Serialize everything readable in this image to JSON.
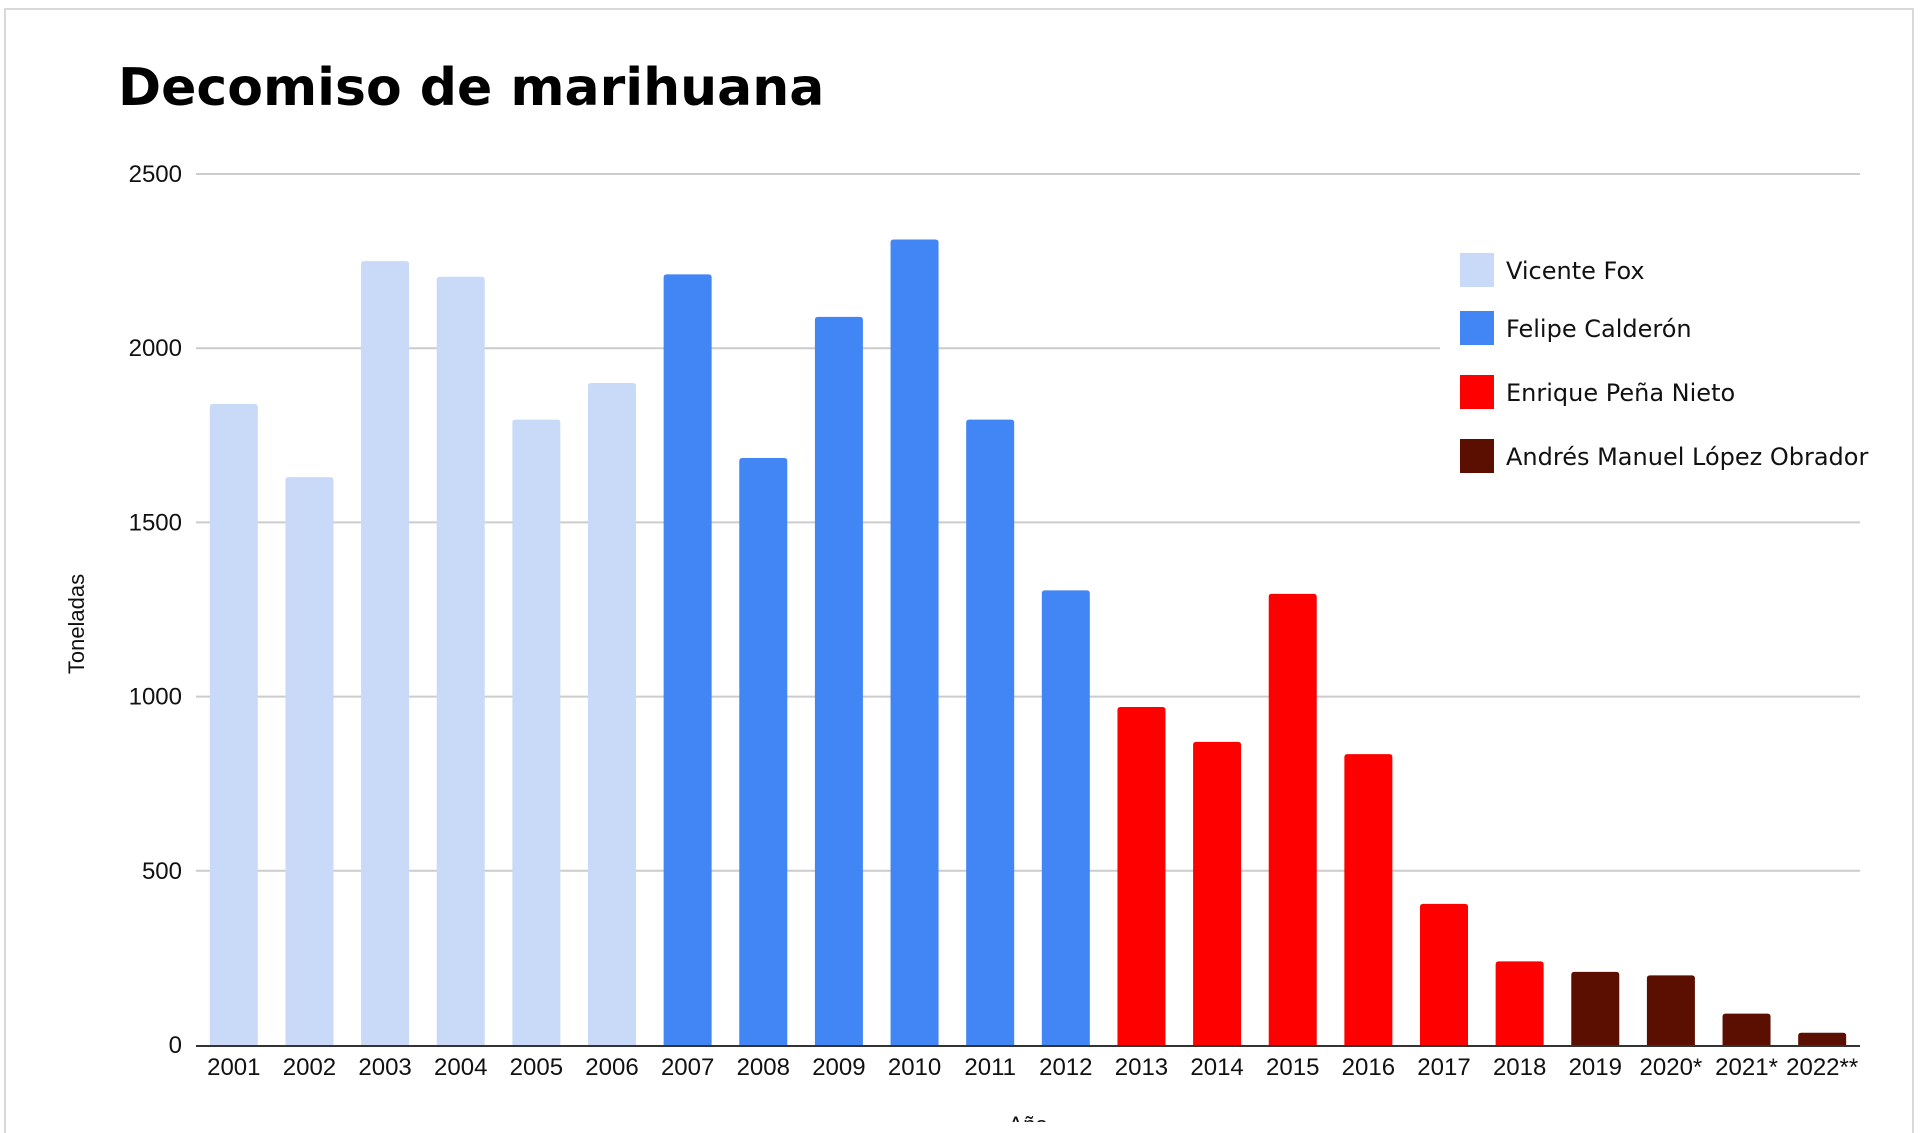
{
  "colors": {
    "Vicente Fox": "#c9daf8",
    "Felipe Calderón": "#4285f4",
    "Enrique Peña Nieto": "#ff0000",
    "Andrés Manuel López Obrador": "#5b0f00",
    "gridline": "#cccccc",
    "axis": "#333333"
  },
  "chart_data": {
    "type": "bar",
    "title": "Decomiso de marihuana",
    "xlabel": "Año",
    "ylabel": "Toneladas",
    "ylim": [
      0,
      2500
    ],
    "yticks": [
      0,
      500,
      1000,
      1500,
      2000,
      2500
    ],
    "grid": true,
    "legend_position": "top-right",
    "categories": [
      "2001",
      "2002",
      "2003",
      "2004",
      "2005",
      "2006",
      "2007",
      "2008",
      "2009",
      "2010",
      "2011",
      "2012",
      "2013",
      "2014",
      "2015",
      "2016",
      "2017",
      "2018",
      "2019",
      "2020*",
      "2021*",
      "2022**"
    ],
    "values": [
      1840,
      1630,
      2250,
      2205,
      1795,
      1900,
      2212,
      1685,
      2090,
      2312,
      1795,
      1305,
      970,
      870,
      1295,
      835,
      405,
      240,
      210,
      200,
      90,
      35
    ],
    "bar_series": [
      "Vicente Fox",
      "Vicente Fox",
      "Vicente Fox",
      "Vicente Fox",
      "Vicente Fox",
      "Vicente Fox",
      "Felipe Calderón",
      "Felipe Calderón",
      "Felipe Calderón",
      "Felipe Calderón",
      "Felipe Calderón",
      "Felipe Calderón",
      "Enrique Peña Nieto",
      "Enrique Peña Nieto",
      "Enrique Peña Nieto",
      "Enrique Peña Nieto",
      "Enrique Peña Nieto",
      "Enrique Peña Nieto",
      "Andrés Manuel López Obrador",
      "Andrés Manuel López Obrador",
      "Andrés Manuel López Obrador",
      "Andrés Manuel López Obrador"
    ],
    "legend": [
      "Vicente Fox",
      "Felipe Calderón",
      "Enrique Peña Nieto",
      "Andrés Manuel López Obrador"
    ]
  }
}
